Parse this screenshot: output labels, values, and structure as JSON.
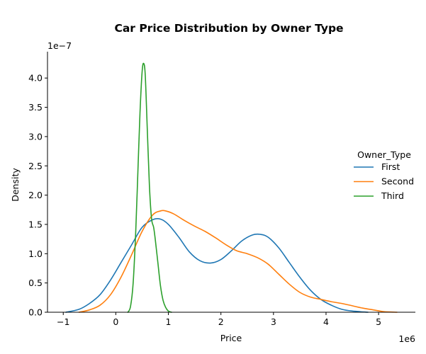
{
  "chart_data": {
    "type": "line",
    "title": "Car Price Distribution by Owner Type",
    "xlabel": "Price",
    "ylabel": "Density",
    "x_offset_text": "1e6",
    "y_offset_text": "1e−7",
    "xlim": [
      -1.3,
      5.7
    ],
    "ylim": [
      0,
      4.45
    ],
    "x_ticks": [
      -1,
      0,
      1,
      2,
      3,
      4,
      5
    ],
    "x_tick_labels": [
      "−1",
      "0",
      "1",
      "2",
      "3",
      "4",
      "5"
    ],
    "y_ticks": [
      0,
      0.5,
      1.0,
      1.5,
      2.0,
      2.5,
      3.0,
      3.5,
      4.0
    ],
    "y_tick_labels": [
      "0.0",
      "0.5",
      "1.0",
      "1.5",
      "2.0",
      "2.5",
      "3.0",
      "3.5",
      "4.0"
    ],
    "grid": false,
    "legend": {
      "title": "Owner_Type",
      "placement": "center-right"
    },
    "series": [
      {
        "name": "First",
        "color": "#1f77b4",
        "x": [
          -0.95,
          -0.7,
          -0.5,
          -0.3,
          -0.1,
          0.1,
          0.3,
          0.5,
          0.7,
          0.85,
          1.0,
          1.2,
          1.4,
          1.6,
          1.8,
          2.0,
          2.2,
          2.4,
          2.6,
          2.75,
          2.9,
          3.1,
          3.3,
          3.5,
          3.7,
          3.9,
          4.1,
          4.3,
          4.5,
          4.8
        ],
        "y": [
          0.0,
          0.05,
          0.15,
          0.3,
          0.55,
          0.85,
          1.15,
          1.45,
          1.58,
          1.59,
          1.5,
          1.28,
          1.03,
          0.88,
          0.84,
          0.9,
          1.05,
          1.22,
          1.32,
          1.33,
          1.28,
          1.1,
          0.85,
          0.6,
          0.38,
          0.22,
          0.12,
          0.05,
          0.02,
          0.0
        ]
      },
      {
        "name": "Second",
        "color": "#ff7f0e",
        "x": [
          -0.7,
          -0.5,
          -0.3,
          -0.1,
          0.1,
          0.3,
          0.5,
          0.7,
          0.85,
          0.95,
          1.1,
          1.3,
          1.5,
          1.7,
          1.9,
          2.1,
          2.3,
          2.5,
          2.7,
          2.9,
          3.1,
          3.3,
          3.5,
          3.7,
          3.9,
          4.1,
          4.3,
          4.5,
          4.7,
          4.9,
          5.1,
          5.35
        ],
        "y": [
          0.0,
          0.04,
          0.12,
          0.3,
          0.6,
          0.98,
          1.38,
          1.66,
          1.73,
          1.73,
          1.68,
          1.57,
          1.47,
          1.38,
          1.27,
          1.15,
          1.05,
          1.0,
          0.93,
          0.82,
          0.65,
          0.48,
          0.34,
          0.26,
          0.22,
          0.18,
          0.15,
          0.11,
          0.07,
          0.04,
          0.01,
          0.0
        ]
      },
      {
        "name": "Third",
        "color": "#2ca02c",
        "x": [
          0.23,
          0.28,
          0.33,
          0.38,
          0.42,
          0.46,
          0.5,
          0.53,
          0.56,
          0.6,
          0.64,
          0.68,
          0.72,
          0.75,
          0.8,
          0.85,
          0.9,
          0.95,
          1.0,
          1.06
        ],
        "y": [
          0.0,
          0.1,
          0.5,
          1.4,
          2.4,
          3.4,
          4.1,
          4.25,
          4.05,
          3.1,
          2.15,
          1.6,
          1.45,
          1.25,
          0.85,
          0.45,
          0.2,
          0.08,
          0.02,
          0.0
        ]
      }
    ]
  }
}
